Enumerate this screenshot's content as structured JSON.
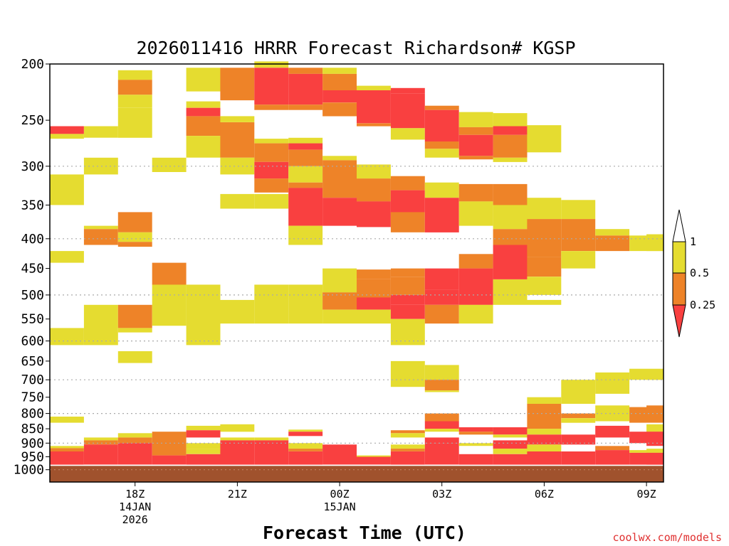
{
  "chart_data": {
    "type": "heatmap",
    "title": "2026011416 HRRR Forecast Richardson# KGSP",
    "xlabel": "Forecast Time (UTC)",
    "ylabel": "",
    "credit": "coolwx.com/models",
    "x_range": [
      "2026-01-14T16:00Z",
      "2026-01-15T10:00Z"
    ],
    "ylim": [
      1000,
      200
    ],
    "y_scale": "log-pressure",
    "y_ticks": [
      200,
      250,
      300,
      350,
      400,
      450,
      500,
      550,
      600,
      650,
      700,
      750,
      800,
      850,
      900,
      950,
      1000
    ],
    "gridlines_at": [
      300,
      400,
      500,
      600,
      700,
      800,
      900,
      1000
    ],
    "x_ticks": [
      {
        "hour": 2,
        "lines": [
          "18Z",
          "14JAN",
          "2026"
        ]
      },
      {
        "hour": 5,
        "lines": [
          "21Z"
        ]
      },
      {
        "hour": 8,
        "lines": [
          "00Z",
          "15JAN"
        ]
      },
      {
        "hour": 11,
        "lines": [
          "03Z"
        ]
      },
      {
        "hour": 14,
        "lines": [
          "06Z"
        ]
      },
      {
        "hour": 17,
        "lines": [
          "09Z"
        ]
      }
    ],
    "legend": {
      "placement": "right",
      "entries": [
        {
          "label": "1",
          "color": "#ffffff"
        },
        {
          "label": "0.5",
          "color": "#e5dc30"
        },
        {
          "label": "0.25",
          "color": "#ee8328"
        },
        {
          "label": "",
          "color": "#f94040"
        }
      ]
    },
    "surface": {
      "p_top": 985,
      "color": "#a0522d"
    },
    "colors": {
      "yellow": "#e5dc30",
      "orange": "#ee8328",
      "red": "#f94040"
    },
    "columns": [
      {
        "hour": 0,
        "cells": [
          [
            256,
            264,
            "red"
          ],
          [
            264,
            269,
            "yellow"
          ],
          [
            310,
            350,
            "yellow"
          ],
          [
            420,
            440,
            "yellow"
          ],
          [
            570,
            610,
            "yellow"
          ],
          [
            810,
            830,
            "yellow"
          ],
          [
            910,
            918,
            "yellow"
          ],
          [
            918,
            930,
            "orange"
          ],
          [
            930,
            980,
            "red"
          ]
        ]
      },
      {
        "hour": 1,
        "cells": [
          [
            256,
            268,
            "yellow"
          ],
          [
            290,
            310,
            "yellow"
          ],
          [
            380,
            385,
            "yellow"
          ],
          [
            385,
            410,
            "orange"
          ],
          [
            520,
            610,
            "yellow"
          ],
          [
            880,
            890,
            "yellow"
          ],
          [
            890,
            905,
            "orange"
          ],
          [
            905,
            980,
            "red"
          ]
        ]
      },
      {
        "hour": 2,
        "cells": [
          [
            205,
            213,
            "yellow"
          ],
          [
            213,
            226,
            "orange"
          ],
          [
            226,
            238,
            "yellow"
          ],
          [
            238,
            268,
            "yellow"
          ],
          [
            360,
            390,
            "orange"
          ],
          [
            390,
            405,
            "yellow"
          ],
          [
            405,
            413,
            "orange"
          ],
          [
            520,
            570,
            "orange"
          ],
          [
            570,
            580,
            "yellow"
          ],
          [
            625,
            655,
            "yellow"
          ],
          [
            865,
            880,
            "yellow"
          ],
          [
            880,
            900,
            "orange"
          ],
          [
            900,
            980,
            "red"
          ]
        ]
      },
      {
        "hour": 3,
        "cells": [
          [
            290,
            307,
            "yellow"
          ],
          [
            440,
            480,
            "orange"
          ],
          [
            480,
            565,
            "yellow"
          ],
          [
            860,
            945,
            "orange"
          ],
          [
            945,
            980,
            "red"
          ]
        ]
      },
      {
        "hour": 4,
        "cells": [
          [
            203,
            223,
            "yellow"
          ],
          [
            232,
            238,
            "yellow"
          ],
          [
            238,
            246,
            "red"
          ],
          [
            246,
            266,
            "orange"
          ],
          [
            266,
            290,
            "yellow"
          ],
          [
            480,
            610,
            "yellow"
          ],
          [
            840,
            855,
            "yellow"
          ],
          [
            855,
            880,
            "red"
          ],
          [
            900,
            920,
            "yellow"
          ],
          [
            920,
            940,
            "yellow"
          ],
          [
            940,
            980,
            "red"
          ]
        ]
      },
      {
        "hour": 5,
        "cells": [
          [
            203,
            231,
            "orange"
          ],
          [
            246,
            252,
            "yellow"
          ],
          [
            252,
            290,
            "orange"
          ],
          [
            290,
            310,
            "yellow"
          ],
          [
            335,
            355,
            "yellow"
          ],
          [
            510,
            560,
            "yellow"
          ],
          [
            835,
            860,
            "yellow"
          ],
          [
            880,
            890,
            "yellow"
          ],
          [
            890,
            980,
            "red"
          ]
        ]
      },
      {
        "hour": 6,
        "cells": [
          [
            198,
            203,
            "yellow"
          ],
          [
            203,
            235,
            "red"
          ],
          [
            235,
            240,
            "orange"
          ],
          [
            269,
            274,
            "yellow"
          ],
          [
            274,
            295,
            "orange"
          ],
          [
            295,
            315,
            "red"
          ],
          [
            315,
            333,
            "orange"
          ],
          [
            335,
            355,
            "yellow"
          ],
          [
            480,
            560,
            "yellow"
          ],
          [
            880,
            890,
            "yellow"
          ],
          [
            890,
            980,
            "red"
          ]
        ]
      },
      {
        "hour": 7,
        "cells": [
          [
            203,
            208,
            "orange"
          ],
          [
            208,
            235,
            "red"
          ],
          [
            235,
            240,
            "orange"
          ],
          [
            268,
            274,
            "yellow"
          ],
          [
            274,
            281,
            "red"
          ],
          [
            281,
            300,
            "orange"
          ],
          [
            300,
            320,
            "yellow"
          ],
          [
            320,
            327,
            "orange"
          ],
          [
            327,
            380,
            "red"
          ],
          [
            380,
            410,
            "yellow"
          ],
          [
            480,
            560,
            "yellow"
          ],
          [
            853,
            860,
            "yellow"
          ],
          [
            860,
            875,
            "red"
          ],
          [
            900,
            920,
            "yellow"
          ],
          [
            920,
            930,
            "orange"
          ],
          [
            930,
            980,
            "red"
          ]
        ]
      },
      {
        "hour": 8,
        "cells": [
          [
            203,
            208,
            "yellow"
          ],
          [
            208,
            222,
            "orange"
          ],
          [
            222,
            233,
            "red"
          ],
          [
            233,
            246,
            "orange"
          ],
          [
            288,
            293,
            "yellow"
          ],
          [
            293,
            340,
            "orange"
          ],
          [
            340,
            380,
            "red"
          ],
          [
            450,
            495,
            "yellow"
          ],
          [
            495,
            530,
            "orange"
          ],
          [
            530,
            560,
            "yellow"
          ],
          [
            905,
            980,
            "red"
          ]
        ]
      },
      {
        "hour": 9,
        "cells": [
          [
            218,
            222,
            "yellow"
          ],
          [
            222,
            253,
            "red"
          ],
          [
            253,
            256,
            "orange"
          ],
          [
            298,
            315,
            "yellow"
          ],
          [
            315,
            345,
            "orange"
          ],
          [
            345,
            382,
            "red"
          ],
          [
            452,
            470,
            "orange"
          ],
          [
            470,
            505,
            "orange"
          ],
          [
            505,
            530,
            "red"
          ],
          [
            530,
            560,
            "yellow"
          ],
          [
            945,
            950,
            "yellow"
          ],
          [
            950,
            980,
            "red"
          ]
        ]
      },
      {
        "hour": 10,
        "cells": [
          [
            220,
            225,
            "red"
          ],
          [
            225,
            258,
            "red"
          ],
          [
            258,
            270,
            "yellow"
          ],
          [
            312,
            330,
            "orange"
          ],
          [
            330,
            360,
            "red"
          ],
          [
            360,
            390,
            "orange"
          ],
          [
            450,
            465,
            "orange"
          ],
          [
            465,
            500,
            "orange"
          ],
          [
            500,
            520,
            "red"
          ],
          [
            520,
            550,
            "red"
          ],
          [
            550,
            610,
            "yellow"
          ],
          [
            650,
            720,
            "yellow"
          ],
          [
            855,
            865,
            "orange"
          ],
          [
            865,
            880,
            "yellow"
          ],
          [
            905,
            920,
            "yellow"
          ],
          [
            920,
            930,
            "orange"
          ],
          [
            930,
            980,
            "red"
          ]
        ]
      },
      {
        "hour": 11,
        "cells": [
          [
            236,
            240,
            "orange"
          ],
          [
            240,
            272,
            "red"
          ],
          [
            272,
            280,
            "orange"
          ],
          [
            280,
            290,
            "yellow"
          ],
          [
            320,
            340,
            "yellow"
          ],
          [
            340,
            390,
            "red"
          ],
          [
            450,
            490,
            "red"
          ],
          [
            490,
            520,
            "red"
          ],
          [
            520,
            560,
            "orange"
          ],
          [
            660,
            700,
            "yellow"
          ],
          [
            700,
            730,
            "orange"
          ],
          [
            730,
            735,
            "yellow"
          ],
          [
            800,
            825,
            "orange"
          ],
          [
            825,
            850,
            "red"
          ],
          [
            850,
            860,
            "yellow"
          ],
          [
            880,
            900,
            "red"
          ],
          [
            900,
            980,
            "red"
          ]
        ]
      },
      {
        "hour": 12,
        "cells": [
          [
            242,
            257,
            "yellow"
          ],
          [
            257,
            265,
            "orange"
          ],
          [
            265,
            288,
            "red"
          ],
          [
            288,
            292,
            "orange"
          ],
          [
            322,
            345,
            "orange"
          ],
          [
            345,
            380,
            "yellow"
          ],
          [
            425,
            450,
            "orange"
          ],
          [
            450,
            520,
            "red"
          ],
          [
            520,
            560,
            "yellow"
          ],
          [
            845,
            860,
            "red"
          ],
          [
            860,
            870,
            "orange"
          ],
          [
            900,
            910,
            "yellow"
          ],
          [
            940,
            980,
            "red"
          ]
        ]
      },
      {
        "hour": 13,
        "cells": [
          [
            243,
            256,
            "yellow"
          ],
          [
            256,
            265,
            "red"
          ],
          [
            265,
            290,
            "orange"
          ],
          [
            290,
            295,
            "yellow"
          ],
          [
            322,
            350,
            "orange"
          ],
          [
            350,
            385,
            "yellow"
          ],
          [
            385,
            410,
            "orange"
          ],
          [
            410,
            470,
            "red"
          ],
          [
            470,
            520,
            "yellow"
          ],
          [
            845,
            870,
            "red"
          ],
          [
            870,
            880,
            "yellow"
          ],
          [
            890,
            920,
            "red"
          ],
          [
            920,
            940,
            "yellow"
          ],
          [
            940,
            980,
            "red"
          ]
        ]
      },
      {
        "hour": 14,
        "cells": [
          [
            255,
            284,
            "yellow"
          ],
          [
            340,
            370,
            "yellow"
          ],
          [
            370,
            430,
            "orange"
          ],
          [
            430,
            465,
            "orange"
          ],
          [
            465,
            500,
            "yellow"
          ],
          [
            510,
            520,
            "yellow"
          ],
          [
            750,
            770,
            "yellow"
          ],
          [
            770,
            850,
            "orange"
          ],
          [
            850,
            870,
            "yellow"
          ],
          [
            870,
            905,
            "red"
          ],
          [
            905,
            930,
            "yellow"
          ],
          [
            930,
            980,
            "red"
          ]
        ]
      },
      {
        "hour": 15,
        "cells": [
          [
            343,
            370,
            "yellow"
          ],
          [
            370,
            420,
            "orange"
          ],
          [
            420,
            450,
            "yellow"
          ],
          [
            700,
            770,
            "yellow"
          ],
          [
            800,
            815,
            "orange"
          ],
          [
            815,
            830,
            "yellow"
          ],
          [
            870,
            905,
            "red"
          ],
          [
            930,
            980,
            "red"
          ]
        ]
      },
      {
        "hour": 16,
        "cells": [
          [
            385,
            395,
            "yellow"
          ],
          [
            395,
            420,
            "orange"
          ],
          [
            680,
            740,
            "yellow"
          ],
          [
            775,
            825,
            "yellow"
          ],
          [
            840,
            880,
            "red"
          ],
          [
            910,
            925,
            "orange"
          ],
          [
            925,
            980,
            "red"
          ]
        ]
      },
      {
        "hour": 17,
        "cells": [
          [
            395,
            420,
            "yellow"
          ],
          [
            670,
            700,
            "yellow"
          ],
          [
            780,
            830,
            "orange"
          ],
          [
            860,
            900,
            "red"
          ],
          [
            925,
            935,
            "yellow"
          ],
          [
            935,
            980,
            "red"
          ]
        ]
      },
      {
        "hour": 17.5,
        "cells": [
          [
            393,
            420,
            "yellow"
          ],
          [
            680,
            700,
            "yellow"
          ],
          [
            775,
            805,
            "orange"
          ],
          [
            835,
            860,
            "yellow"
          ],
          [
            860,
            910,
            "red"
          ],
          [
            920,
            935,
            "yellow"
          ],
          [
            935,
            980,
            "red"
          ]
        ]
      }
    ]
  }
}
